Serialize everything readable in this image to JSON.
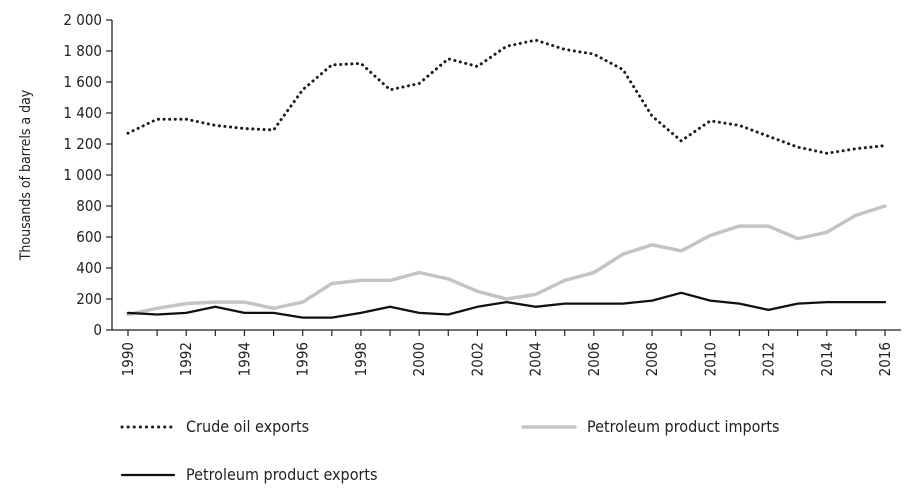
{
  "chart_data": {
    "type": "line",
    "title": "",
    "xlabel": "",
    "ylabel": "Thousands of barrels a day",
    "x": [
      1990,
      1991,
      1992,
      1993,
      1994,
      1995,
      1996,
      1997,
      1998,
      1999,
      2000,
      2001,
      2002,
      2003,
      2004,
      2005,
      2006,
      2007,
      2008,
      2009,
      2010,
      2011,
      2012,
      2013,
      2014,
      2015,
      2016
    ],
    "xticks": [
      "1990",
      "1992",
      "1994",
      "1996",
      "1998",
      "2000",
      "2002",
      "2004",
      "2006",
      "2008",
      "2010",
      "2012",
      "2014",
      "2016"
    ],
    "ylim": [
      0,
      2000
    ],
    "yticks": [
      "0",
      "200",
      "400",
      "600",
      "800",
      "1 000",
      "1 200",
      "1 400",
      "1 600",
      "1 800",
      "2 000"
    ],
    "ytick_values": [
      0,
      200,
      400,
      600,
      800,
      1000,
      1200,
      1400,
      1600,
      1800,
      2000
    ],
    "grid": false,
    "legend_position": "bottom",
    "series": [
      {
        "name": "Crude oil exports",
        "style": "dotted",
        "color": "#1a1a1a",
        "values": [
          1270,
          1360,
          1360,
          1320,
          1300,
          1290,
          1550,
          1710,
          1720,
          1550,
          1590,
          1750,
          1700,
          1830,
          1870,
          1810,
          1780,
          1680,
          1380,
          1220,
          1350,
          1320,
          1250,
          1180,
          1140,
          1170,
          1190
        ]
      },
      {
        "name": "Petroleum product imports",
        "style": "solid",
        "color": "#c4c4c4",
        "values": [
          100,
          140,
          170,
          180,
          180,
          140,
          180,
          300,
          320,
          320,
          370,
          330,
          250,
          200,
          230,
          320,
          370,
          490,
          550,
          510,
          610,
          670,
          670,
          590,
          630,
          740,
          800
        ]
      },
      {
        "name": "Petroleum product exports",
        "style": "solid",
        "color": "#111111",
        "values": [
          110,
          100,
          110,
          150,
          110,
          110,
          80,
          80,
          110,
          150,
          110,
          100,
          150,
          180,
          150,
          170,
          170,
          170,
          190,
          240,
          190,
          170,
          130,
          170,
          180,
          180,
          180
        ]
      }
    ]
  }
}
